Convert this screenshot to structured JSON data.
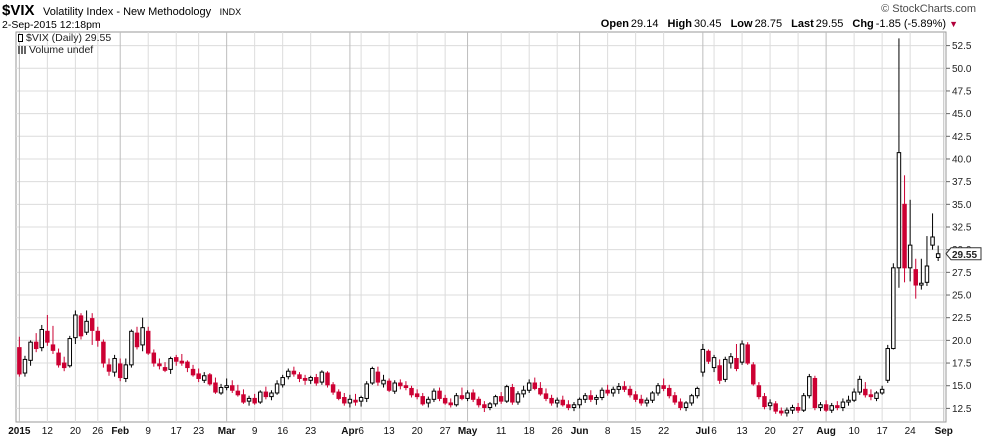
{
  "header": {
    "symbol": "$VIX",
    "name": "Volatility Index - New Methodology",
    "exchange": "INDX",
    "datetime": "2-Sep-2015 12:18pm",
    "brand": "© StockCharts.com",
    "quote": {
      "open_label": "Open",
      "open": "29.14",
      "high_label": "High",
      "high": "30.45",
      "low_label": "Low",
      "low": "28.75",
      "last_label": "Last",
      "last": "29.55",
      "chg_label": "Chg",
      "chg": "-1.85 (-5.89%)"
    }
  },
  "legend": {
    "price": "$VIX (Daily) 29.55",
    "volume": "Volume undef"
  },
  "colors": {
    "up": "#ffffff",
    "down": "#cc0033",
    "wick": "#000000",
    "grid": "#dcdcdc",
    "last_badge": "#ffcc33"
  },
  "chart_data": {
    "type": "candlestick",
    "ylim": [
      11,
      54
    ],
    "yticks": [
      12.5,
      15.0,
      17.5,
      20.0,
      22.5,
      25.0,
      27.5,
      30.0,
      32.5,
      35.0,
      37.5,
      40.0,
      42.5,
      45.0,
      47.5,
      50.0,
      52.5
    ],
    "ytick_labels": [
      "12.5",
      "15.0",
      "17.5",
      "20.0",
      "22.5",
      "25.0",
      "27.5",
      "30.0",
      "32.5",
      "35.0",
      "37.5",
      "40.0",
      "42.5",
      "45.0",
      "47.5",
      "50.0",
      "52.5"
    ],
    "last_value": "29.55",
    "xtick_labels": [
      {
        "label": "2015",
        "index": 0,
        "major": true
      },
      {
        "label": "12",
        "index": 5
      },
      {
        "label": "20",
        "index": 10
      },
      {
        "label": "26",
        "index": 14
      },
      {
        "label": "Feb",
        "index": 18,
        "major": true
      },
      {
        "label": "9",
        "index": 23
      },
      {
        "label": "17",
        "index": 28
      },
      {
        "label": "23",
        "index": 32
      },
      {
        "label": "Mar",
        "index": 37,
        "major": true
      },
      {
        "label": "9",
        "index": 42
      },
      {
        "label": "16",
        "index": 47
      },
      {
        "label": "23",
        "index": 52
      },
      {
        "label": "Apr",
        "index": 59,
        "major": true
      },
      {
        "label": "6",
        "index": 61
      },
      {
        "label": "13",
        "index": 66
      },
      {
        "label": "20",
        "index": 71
      },
      {
        "label": "27",
        "index": 76
      },
      {
        "label": "May",
        "index": 80,
        "major": true
      },
      {
        "label": "11",
        "index": 86
      },
      {
        "label": "18",
        "index": 91
      },
      {
        "label": "26",
        "index": 96
      },
      {
        "label": "Jun",
        "index": 100,
        "major": true
      },
      {
        "label": "8",
        "index": 105
      },
      {
        "label": "15",
        "index": 110
      },
      {
        "label": "22",
        "index": 115
      },
      {
        "label": "Jul",
        "index": 122,
        "major": true
      },
      {
        "label": "6",
        "index": 124
      },
      {
        "label": "13",
        "index": 129
      },
      {
        "label": "20",
        "index": 134
      },
      {
        "label": "27",
        "index": 139
      },
      {
        "label": "Aug",
        "index": 144,
        "major": true
      },
      {
        "label": "10",
        "index": 149
      },
      {
        "label": "17",
        "index": 154
      },
      {
        "label": "24",
        "index": 159
      },
      {
        "label": "Sep",
        "index": 165,
        "major": true
      }
    ],
    "ohlc": [
      [
        19.2,
        20.4,
        16.0,
        16.3
      ],
      [
        16.4,
        18.3,
        16.0,
        17.9
      ],
      [
        17.8,
        20.0,
        17.2,
        19.8
      ],
      [
        19.8,
        20.8,
        18.7,
        19.1
      ],
      [
        19.2,
        21.7,
        18.8,
        21.2
      ],
      [
        21.0,
        22.8,
        19.4,
        19.8
      ],
      [
        19.5,
        21.6,
        18.5,
        18.9
      ],
      [
        18.6,
        19.1,
        17.0,
        17.3
      ],
      [
        17.5,
        18.2,
        16.6,
        17.0
      ],
      [
        17.2,
        20.5,
        17.0,
        20.2
      ],
      [
        20.3,
        23.3,
        19.6,
        22.8
      ],
      [
        22.7,
        23.0,
        20.1,
        20.5
      ],
      [
        20.9,
        23.3,
        20.6,
        22.1
      ],
      [
        22.4,
        23.0,
        19.5,
        21.1
      ],
      [
        21.0,
        21.5,
        19.3,
        20.0
      ],
      [
        19.8,
        20.1,
        17.0,
        17.5
      ],
      [
        17.3,
        18.0,
        16.1,
        16.6
      ],
      [
        16.5,
        18.4,
        16.0,
        18.0
      ],
      [
        17.4,
        18.0,
        15.5,
        15.9
      ],
      [
        15.8,
        18.0,
        15.4,
        17.3
      ],
      [
        17.3,
        21.2,
        17.0,
        21.0
      ],
      [
        20.8,
        21.5,
        19.0,
        19.3
      ],
      [
        19.5,
        22.5,
        18.8,
        21.4
      ],
      [
        21.0,
        21.5,
        18.4,
        18.6
      ],
      [
        18.6,
        19.0,
        17.1,
        17.5
      ],
      [
        17.4,
        18.0,
        16.8,
        17.2
      ],
      [
        17.0,
        17.6,
        16.5,
        16.7
      ],
      [
        16.8,
        18.2,
        16.3,
        18.0
      ],
      [
        18.1,
        18.4,
        17.2,
        17.7
      ],
      [
        17.7,
        18.5,
        17.2,
        17.5
      ],
      [
        17.6,
        17.8,
        16.5,
        17.0
      ],
      [
        16.8,
        17.3,
        16.0,
        16.2
      ],
      [
        16.3,
        16.9,
        15.4,
        15.8
      ],
      [
        15.6,
        16.5,
        15.3,
        16.1
      ],
      [
        16.2,
        16.4,
        15.0,
        15.2
      ],
      [
        15.3,
        15.9,
        14.1,
        14.3
      ],
      [
        14.2,
        15.2,
        14.0,
        14.8
      ],
      [
        14.8,
        15.8,
        14.5,
        15.0
      ],
      [
        15.0,
        15.6,
        14.2,
        14.5
      ],
      [
        14.4,
        15.1,
        13.8,
        14.0
      ],
      [
        14.0,
        14.6,
        13.0,
        13.2
      ],
      [
        13.3,
        13.9,
        12.8,
        13.6
      ],
      [
        13.6,
        14.1,
        12.9,
        13.1
      ],
      [
        13.2,
        14.5,
        13.0,
        14.3
      ],
      [
        14.3,
        14.9,
        13.5,
        13.8
      ],
      [
        13.8,
        14.5,
        13.4,
        14.2
      ],
      [
        14.2,
        15.6,
        14.0,
        15.2
      ],
      [
        15.1,
        16.2,
        14.8,
        15.9
      ],
      [
        16.0,
        16.9,
        15.7,
        16.6
      ],
      [
        16.6,
        17.1,
        16.0,
        16.3
      ],
      [
        16.2,
        16.5,
        15.4,
        15.8
      ],
      [
        15.8,
        16.2,
        15.1,
        15.6
      ],
      [
        15.6,
        16.1,
        15.2,
        15.9
      ],
      [
        15.9,
        16.3,
        15.0,
        15.3
      ],
      [
        15.4,
        16.7,
        15.1,
        16.5
      ],
      [
        16.4,
        16.6,
        14.8,
        15.1
      ],
      [
        15.1,
        15.4,
        14.0,
        14.3
      ],
      [
        14.3,
        14.6,
        13.4,
        13.6
      ],
      [
        13.7,
        14.2,
        12.8,
        13.1
      ],
      [
        13.1,
        14.0,
        12.6,
        13.5
      ],
      [
        13.4,
        14.1,
        12.8,
        13.2
      ],
      [
        13.3,
        13.9,
        12.7,
        13.7
      ],
      [
        13.6,
        15.5,
        13.2,
        15.2
      ],
      [
        15.3,
        17.1,
        15.1,
        16.9
      ],
      [
        16.5,
        17.1,
        15.0,
        15.4
      ],
      [
        15.2,
        16.2,
        14.8,
        15.6
      ],
      [
        15.5,
        15.8,
        14.3,
        14.5
      ],
      [
        14.4,
        15.6,
        14.1,
        15.3
      ],
      [
        15.3,
        15.7,
        14.6,
        15.0
      ],
      [
        15.0,
        15.5,
        14.5,
        14.8
      ],
      [
        14.7,
        15.0,
        13.7,
        14.0
      ],
      [
        14.1,
        14.6,
        13.5,
        13.8
      ],
      [
        13.8,
        14.2,
        12.8,
        13.0
      ],
      [
        13.1,
        13.8,
        12.6,
        13.5
      ],
      [
        13.5,
        14.7,
        13.2,
        14.4
      ],
      [
        14.4,
        14.8,
        13.3,
        13.6
      ],
      [
        13.6,
        14.0,
        12.9,
        13.1
      ],
      [
        13.1,
        13.6,
        12.6,
        12.9
      ],
      [
        12.9,
        14.2,
        12.7,
        13.9
      ],
      [
        13.9,
        14.8,
        13.4,
        13.6
      ],
      [
        13.6,
        14.5,
        13.3,
        14.2
      ],
      [
        14.2,
        14.6,
        13.2,
        13.5
      ],
      [
        13.5,
        13.8,
        12.6,
        12.9
      ],
      [
        12.9,
        13.3,
        12.1,
        12.6
      ],
      [
        12.6,
        13.2,
        12.3,
        13.0
      ],
      [
        13.0,
        14.0,
        12.7,
        13.8
      ],
      [
        13.8,
        14.3,
        13.0,
        13.3
      ],
      [
        13.3,
        15.1,
        13.1,
        14.9
      ],
      [
        14.8,
        15.2,
        12.9,
        13.2
      ],
      [
        13.2,
        14.4,
        12.9,
        14.1
      ],
      [
        14.1,
        15.0,
        13.7,
        14.5
      ],
      [
        14.5,
        15.7,
        14.2,
        15.3
      ],
      [
        15.3,
        15.9,
        14.5,
        14.7
      ],
      [
        14.7,
        15.4,
        13.9,
        14.1
      ],
      [
        14.1,
        14.7,
        13.3,
        13.6
      ],
      [
        13.6,
        14.0,
        12.8,
        13.1
      ],
      [
        13.1,
        13.7,
        12.6,
        13.4
      ],
      [
        13.4,
        13.9,
        12.7,
        12.9
      ],
      [
        12.9,
        13.4,
        12.3,
        12.6
      ],
      [
        12.6,
        13.2,
        12.2,
        12.9
      ],
      [
        12.9,
        13.7,
        12.5,
        13.5
      ],
      [
        13.5,
        14.2,
        13.1,
        13.9
      ],
      [
        13.9,
        14.5,
        13.2,
        13.5
      ],
      [
        13.5,
        14.0,
        12.9,
        13.7
      ],
      [
        13.7,
        14.8,
        13.4,
        14.5
      ],
      [
        14.5,
        15.1,
        13.9,
        14.2
      ],
      [
        14.2,
        14.9,
        13.8,
        14.6
      ],
      [
        14.6,
        15.3,
        14.1,
        14.9
      ],
      [
        14.9,
        15.5,
        14.3,
        14.6
      ],
      [
        14.6,
        15.0,
        13.7,
        14.0
      ],
      [
        14.0,
        14.4,
        13.2,
        13.5
      ],
      [
        13.5,
        14.0,
        12.8,
        13.1
      ],
      [
        13.1,
        13.7,
        12.7,
        13.4
      ],
      [
        13.4,
        14.4,
        13.1,
        14.2
      ],
      [
        14.2,
        15.3,
        13.9,
        15.0
      ],
      [
        15.0,
        15.8,
        14.4,
        14.7
      ],
      [
        14.7,
        15.1,
        13.6,
        13.9
      ],
      [
        13.9,
        14.3,
        12.9,
        13.2
      ],
      [
        13.2,
        13.6,
        12.3,
        12.6
      ],
      [
        12.6,
        13.3,
        12.2,
        13.1
      ],
      [
        13.1,
        14.1,
        12.8,
        13.9
      ],
      [
        13.9,
        14.9,
        13.6,
        14.7
      ],
      [
        16.5,
        19.6,
        16.0,
        19.0
      ],
      [
        18.8,
        19.0,
        17.4,
        17.7
      ],
      [
        17.0,
        18.4,
        16.5,
        18.1
      ],
      [
        17.2,
        17.9,
        15.2,
        15.6
      ],
      [
        15.7,
        18.2,
        15.4,
        17.9
      ],
      [
        17.5,
        18.6,
        16.9,
        18.2
      ],
      [
        18.0,
        19.6,
        16.6,
        16.9
      ],
      [
        17.6,
        20.0,
        17.3,
        19.6
      ],
      [
        19.5,
        19.8,
        17.3,
        17.5
      ],
      [
        17.3,
        17.6,
        15.0,
        15.2
      ],
      [
        15.0,
        15.4,
        13.5,
        13.8
      ],
      [
        13.8,
        14.2,
        12.4,
        12.7
      ],
      [
        12.8,
        13.5,
        12.3,
        13.1
      ],
      [
        13.0,
        13.3,
        11.9,
        12.2
      ],
      [
        12.2,
        12.6,
        11.7,
        12.0
      ],
      [
        12.0,
        12.6,
        11.6,
        12.3
      ],
      [
        12.3,
        12.9,
        11.9,
        12.6
      ],
      [
        12.6,
        13.1,
        12.0,
        12.3
      ],
      [
        12.3,
        14.2,
        12.1,
        13.9
      ],
      [
        13.9,
        16.3,
        13.6,
        16.0
      ],
      [
        15.8,
        16.1,
        12.3,
        12.6
      ],
      [
        12.6,
        13.2,
        12.2,
        12.9
      ],
      [
        12.9,
        13.4,
        12.1,
        12.3
      ],
      [
        12.3,
        13.1,
        12.0,
        12.8
      ],
      [
        12.8,
        13.3,
        12.3,
        12.6
      ],
      [
        12.6,
        13.6,
        12.2,
        13.2
      ],
      [
        13.2,
        13.9,
        12.8,
        13.4
      ],
      [
        13.4,
        14.7,
        13.2,
        14.3
      ],
      [
        14.3,
        16.1,
        14.0,
        15.7
      ],
      [
        14.6,
        15.4,
        13.7,
        14.0
      ],
      [
        14.0,
        14.6,
        13.4,
        13.8
      ],
      [
        13.6,
        14.4,
        13.3,
        14.2
      ],
      [
        14.2,
        15.0,
        14.0,
        14.6
      ],
      [
        15.6,
        19.5,
        15.3,
        19.1
      ],
      [
        19.1,
        28.5,
        19.0,
        28.0
      ],
      [
        28.0,
        53.3,
        25.8,
        40.7
      ],
      [
        35.0,
        38.2,
        26.4,
        28.0
      ],
      [
        28.0,
        35.5,
        26.5,
        30.5
      ],
      [
        27.8,
        29.0,
        24.6,
        26.1
      ],
      [
        26.1,
        29.0,
        25.6,
        26.3
      ],
      [
        26.4,
        31.5,
        26.0,
        28.2
      ],
      [
        30.5,
        34.0,
        30.0,
        31.4
      ],
      [
        29.14,
        30.45,
        28.75,
        29.55
      ]
    ]
  }
}
